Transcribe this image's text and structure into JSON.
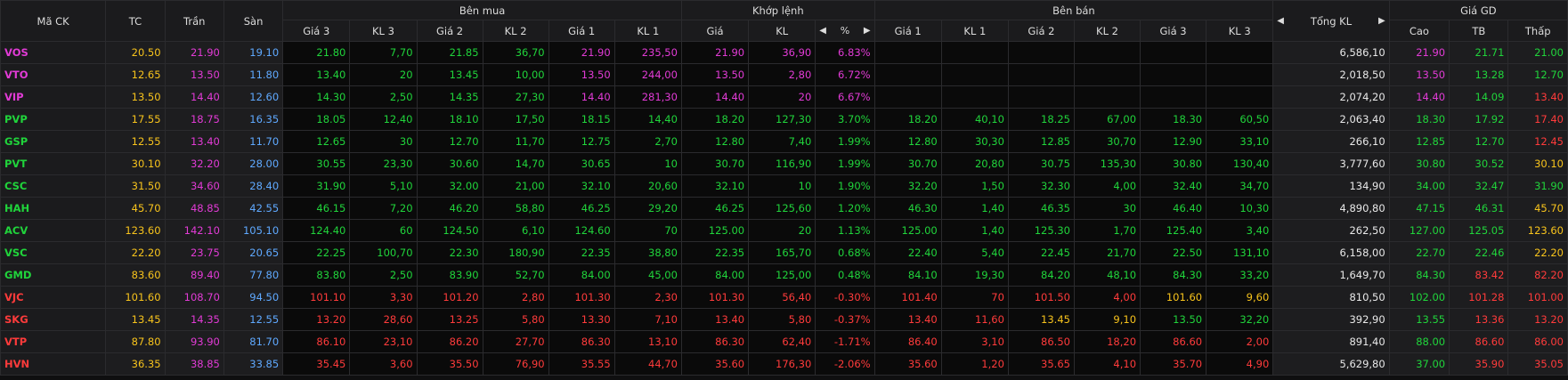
{
  "colors": {
    "ceiling": "#e23bd6",
    "up": "#20d43b",
    "down": "#ff3b3b",
    "ref": "#f7c31c",
    "floor": "#5fa9ff"
  },
  "headers": {
    "symbol": "Mã CK",
    "ref": "TC",
    "ceiling": "Trần",
    "floor": "Sàn",
    "buy_group": "Bên mua",
    "match_group": "Khớp lệnh",
    "sell_group": "Bên bán",
    "total": "Tổng KL",
    "price_group": "Giá GD",
    "buy_cols": [
      "Giá 3",
      "KL 3",
      "Giá 2",
      "KL 2",
      "Giá 1",
      "KL 1"
    ],
    "match_cols": [
      "Giá",
      "KL"
    ],
    "sell_cols": [
      "Giá 1",
      "KL 1",
      "Giá 2",
      "KL 2",
      "Giá 3",
      "KL 3"
    ],
    "price_cols": [
      "Cao",
      "TB",
      "Thấp"
    ],
    "pct_icon": "percent-toggle-icon"
  },
  "rows": [
    {
      "sym": "VOS",
      "tc": "20.50",
      "ceil": "21.90",
      "floor": "19.10",
      "bp3": "21.80",
      "bv3": "7,70",
      "bp2": "21.85",
      "bv2": "36,70",
      "bp1": "21.90",
      "bv1": "235,50",
      "mp": "21.90",
      "mv": "36,90",
      "pct": "6.83%",
      "sp1": "",
      "sv1": "",
      "sp2": "",
      "sv2": "",
      "sp3": "",
      "sv3": "",
      "tot": "6,586,10",
      "hi": "21.90",
      "avg": "21.71",
      "lo": "21.00",
      "c": {
        "sym": "purple",
        "bp3": "green",
        "bv3": "green",
        "bp2": "green",
        "bv2": "green",
        "bp1": "purple",
        "bv1": "purple",
        "mp": "purple",
        "mv": "purple",
        "pct": "purple",
        "sp1": "white",
        "sv1": "white",
        "sp2": "white",
        "sv2": "white",
        "sp3": "white",
        "sv3": "white",
        "hi": "purple",
        "avg": "green",
        "lo": "green"
      }
    },
    {
      "sym": "VTO",
      "tc": "12.65",
      "ceil": "13.50",
      "floor": "11.80",
      "bp3": "13.40",
      "bv3": "20",
      "bp2": "13.45",
      "bv2": "10,00",
      "bp1": "13.50",
      "bv1": "244,00",
      "mp": "13.50",
      "mv": "2,80",
      "pct": "6.72%",
      "sp1": "",
      "sv1": "",
      "sp2": "",
      "sv2": "",
      "sp3": "",
      "sv3": "",
      "tot": "2,018,50",
      "hi": "13.50",
      "avg": "13.28",
      "lo": "12.70",
      "c": {
        "sym": "purple",
        "bp3": "green",
        "bv3": "green",
        "bp2": "green",
        "bv2": "green",
        "bp1": "purple",
        "bv1": "purple",
        "mp": "purple",
        "mv": "purple",
        "pct": "purple",
        "sp1": "white",
        "sv1": "white",
        "sp2": "white",
        "sv2": "white",
        "sp3": "white",
        "sv3": "white",
        "hi": "purple",
        "avg": "green",
        "lo": "green"
      }
    },
    {
      "sym": "VIP",
      "tc": "13.50",
      "ceil": "14.40",
      "floor": "12.60",
      "bp3": "14.30",
      "bv3": "2,50",
      "bp2": "14.35",
      "bv2": "27,30",
      "bp1": "14.40",
      "bv1": "281,30",
      "mp": "14.40",
      "mv": "20",
      "pct": "6.67%",
      "sp1": "",
      "sv1": "",
      "sp2": "",
      "sv2": "",
      "sp3": "",
      "sv3": "",
      "tot": "2,074,20",
      "hi": "14.40",
      "avg": "14.09",
      "lo": "13.40",
      "c": {
        "sym": "purple",
        "bp3": "green",
        "bv3": "green",
        "bp2": "green",
        "bv2": "green",
        "bp1": "purple",
        "bv1": "purple",
        "mp": "purple",
        "mv": "purple",
        "pct": "purple",
        "sp1": "white",
        "sv1": "white",
        "sp2": "white",
        "sv2": "white",
        "sp3": "white",
        "sv3": "white",
        "hi": "purple",
        "avg": "green",
        "lo": "red"
      }
    },
    {
      "sym": "PVP",
      "tc": "17.55",
      "ceil": "18.75",
      "floor": "16.35",
      "bp3": "18.05",
      "bv3": "12,40",
      "bp2": "18.10",
      "bv2": "17,50",
      "bp1": "18.15",
      "bv1": "14,40",
      "mp": "18.20",
      "mv": "127,30",
      "pct": "3.70%",
      "sp1": "18.20",
      "sv1": "40,10",
      "sp2": "18.25",
      "sv2": "67,00",
      "sp3": "18.30",
      "sv3": "60,50",
      "tot": "2,063,40",
      "hi": "18.30",
      "avg": "17.92",
      "lo": "17.40",
      "c": {
        "sym": "green",
        "bp3": "green",
        "bv3": "green",
        "bp2": "green",
        "bv2": "green",
        "bp1": "green",
        "bv1": "green",
        "mp": "green",
        "mv": "green",
        "pct": "green",
        "sp1": "green",
        "sv1": "green",
        "sp2": "green",
        "sv2": "green",
        "sp3": "green",
        "sv3": "green",
        "hi": "green",
        "avg": "green",
        "lo": "red"
      }
    },
    {
      "sym": "GSP",
      "tc": "12.55",
      "ceil": "13.40",
      "floor": "11.70",
      "bp3": "12.65",
      "bv3": "30",
      "bp2": "12.70",
      "bv2": "11,70",
      "bp1": "12.75",
      "bv1": "2,70",
      "mp": "12.80",
      "mv": "7,40",
      "pct": "1.99%",
      "sp1": "12.80",
      "sv1": "30,30",
      "sp2": "12.85",
      "sv2": "30,70",
      "sp3": "12.90",
      "sv3": "33,10",
      "tot": "266,10",
      "hi": "12.85",
      "avg": "12.70",
      "lo": "12.45",
      "c": {
        "sym": "green",
        "bp3": "green",
        "bv3": "green",
        "bp2": "green",
        "bv2": "green",
        "bp1": "green",
        "bv1": "green",
        "mp": "green",
        "mv": "green",
        "pct": "green",
        "sp1": "green",
        "sv1": "green",
        "sp2": "green",
        "sv2": "green",
        "sp3": "green",
        "sv3": "green",
        "hi": "green",
        "avg": "green",
        "lo": "red"
      }
    },
    {
      "sym": "PVT",
      "tc": "30.10",
      "ceil": "32.20",
      "floor": "28.00",
      "bp3": "30.55",
      "bv3": "23,30",
      "bp2": "30.60",
      "bv2": "14,70",
      "bp1": "30.65",
      "bv1": "10",
      "mp": "30.70",
      "mv": "116,90",
      "pct": "1.99%",
      "sp1": "30.70",
      "sv1": "20,80",
      "sp2": "30.75",
      "sv2": "135,30",
      "sp3": "30.80",
      "sv3": "130,40",
      "tot": "3,777,60",
      "hi": "30.80",
      "avg": "30.52",
      "lo": "30.10",
      "c": {
        "sym": "green",
        "bp3": "green",
        "bv3": "green",
        "bp2": "green",
        "bv2": "green",
        "bp1": "green",
        "bv1": "green",
        "mp": "green",
        "mv": "green",
        "pct": "green",
        "sp1": "green",
        "sv1": "green",
        "sp2": "green",
        "sv2": "green",
        "sp3": "green",
        "sv3": "green",
        "hi": "green",
        "avg": "green",
        "lo": "yellow"
      }
    },
    {
      "sym": "CSC",
      "tc": "31.50",
      "ceil": "34.60",
      "floor": "28.40",
      "bp3": "31.90",
      "bv3": "5,10",
      "bp2": "32.00",
      "bv2": "21,00",
      "bp1": "32.10",
      "bv1": "20,60",
      "mp": "32.10",
      "mv": "10",
      "pct": "1.90%",
      "sp1": "32.20",
      "sv1": "1,50",
      "sp2": "32.30",
      "sv2": "4,00",
      "sp3": "32.40",
      "sv3": "34,70",
      "tot": "134,90",
      "hi": "34.00",
      "avg": "32.47",
      "lo": "31.90",
      "c": {
        "sym": "green",
        "bp3": "green",
        "bv3": "green",
        "bp2": "green",
        "bv2": "green",
        "bp1": "green",
        "bv1": "green",
        "mp": "green",
        "mv": "green",
        "pct": "green",
        "sp1": "green",
        "sv1": "green",
        "sp2": "green",
        "sv2": "green",
        "sp3": "green",
        "sv3": "green",
        "hi": "green",
        "avg": "green",
        "lo": "green"
      }
    },
    {
      "sym": "HAH",
      "tc": "45.70",
      "ceil": "48.85",
      "floor": "42.55",
      "bp3": "46.15",
      "bv3": "7,20",
      "bp2": "46.20",
      "bv2": "58,80",
      "bp1": "46.25",
      "bv1": "29,20",
      "mp": "46.25",
      "mv": "125,60",
      "pct": "1.20%",
      "sp1": "46.30",
      "sv1": "1,40",
      "sp2": "46.35",
      "sv2": "30",
      "sp3": "46.40",
      "sv3": "10,30",
      "tot": "4,890,80",
      "hi": "47.15",
      "avg": "46.31",
      "lo": "45.70",
      "c": {
        "sym": "green",
        "bp3": "green",
        "bv3": "green",
        "bp2": "green",
        "bv2": "green",
        "bp1": "green",
        "bv1": "green",
        "mp": "green",
        "mv": "green",
        "pct": "green",
        "sp1": "green",
        "sv1": "green",
        "sp2": "green",
        "sv2": "green",
        "sp3": "green",
        "sv3": "green",
        "hi": "green",
        "avg": "green",
        "lo": "yellow"
      }
    },
    {
      "sym": "ACV",
      "tc": "123.60",
      "ceil": "142.10",
      "floor": "105.10",
      "bp3": "124.40",
      "bv3": "60",
      "bp2": "124.50",
      "bv2": "6,10",
      "bp1": "124.60",
      "bv1": "70",
      "mp": "125.00",
      "mv": "20",
      "pct": "1.13%",
      "sp1": "125.00",
      "sv1": "1,40",
      "sp2": "125.30",
      "sv2": "1,70",
      "sp3": "125.40",
      "sv3": "3,40",
      "tot": "262,50",
      "hi": "127.00",
      "avg": "125.05",
      "lo": "123.60",
      "c": {
        "sym": "green",
        "bp3": "green",
        "bv3": "green",
        "bp2": "green",
        "bv2": "green",
        "bp1": "green",
        "bv1": "green",
        "mp": "green",
        "mv": "green",
        "pct": "green",
        "sp1": "green",
        "sv1": "green",
        "sp2": "green",
        "sv2": "green",
        "sp3": "green",
        "sv3": "green",
        "hi": "green",
        "avg": "green",
        "lo": "yellow"
      }
    },
    {
      "sym": "VSC",
      "tc": "22.20",
      "ceil": "23.75",
      "floor": "20.65",
      "bp3": "22.25",
      "bv3": "100,70",
      "bp2": "22.30",
      "bv2": "180,90",
      "bp1": "22.35",
      "bv1": "38,80",
      "mp": "22.35",
      "mv": "165,70",
      "pct": "0.68%",
      "sp1": "22.40",
      "sv1": "5,40",
      "sp2": "22.45",
      "sv2": "21,70",
      "sp3": "22.50",
      "sv3": "131,10",
      "tot": "6,158,00",
      "hi": "22.70",
      "avg": "22.46",
      "lo": "22.20",
      "c": {
        "sym": "green",
        "bp3": "green",
        "bv3": "green",
        "bp2": "green",
        "bv2": "green",
        "bp1": "green",
        "bv1": "green",
        "mp": "green",
        "mv": "green",
        "pct": "green",
        "sp1": "green",
        "sv1": "green",
        "sp2": "green",
        "sv2": "green",
        "sp3": "green",
        "sv3": "green",
        "hi": "green",
        "avg": "green",
        "lo": "yellow"
      }
    },
    {
      "sym": "GMD",
      "tc": "83.60",
      "ceil": "89.40",
      "floor": "77.80",
      "bp3": "83.80",
      "bv3": "2,50",
      "bp2": "83.90",
      "bv2": "52,70",
      "bp1": "84.00",
      "bv1": "45,00",
      "mp": "84.00",
      "mv": "125,00",
      "pct": "0.48%",
      "sp1": "84.10",
      "sv1": "19,30",
      "sp2": "84.20",
      "sv2": "48,10",
      "sp3": "84.30",
      "sv3": "33,20",
      "tot": "1,649,70",
      "hi": "84.30",
      "avg": "83.42",
      "lo": "82.20",
      "c": {
        "sym": "green",
        "bp3": "green",
        "bv3": "green",
        "bp2": "green",
        "bv2": "green",
        "bp1": "green",
        "bv1": "green",
        "mp": "green",
        "mv": "green",
        "pct": "green",
        "sp1": "green",
        "sv1": "green",
        "sp2": "green",
        "sv2": "green",
        "sp3": "green",
        "sv3": "green",
        "hi": "green",
        "avg": "red",
        "lo": "red"
      }
    },
    {
      "sym": "VJC",
      "tc": "101.60",
      "ceil": "108.70",
      "floor": "94.50",
      "bp3": "101.10",
      "bv3": "3,30",
      "bp2": "101.20",
      "bv2": "2,80",
      "bp1": "101.30",
      "bv1": "2,30",
      "mp": "101.30",
      "mv": "56,40",
      "pct": "-0.30%",
      "sp1": "101.40",
      "sv1": "70",
      "sp2": "101.50",
      "sv2": "4,00",
      "sp3": "101.60",
      "sv3": "9,60",
      "tot": "810,50",
      "hi": "102.00",
      "avg": "101.28",
      "lo": "101.00",
      "c": {
        "sym": "red",
        "bp3": "red",
        "bv3": "red",
        "bp2": "red",
        "bv2": "red",
        "bp1": "red",
        "bv1": "red",
        "mp": "red",
        "mv": "red",
        "pct": "red",
        "sp1": "red",
        "sv1": "red",
        "sp2": "red",
        "sv2": "red",
        "sp3": "yellow",
        "sv3": "yellow",
        "hi": "green",
        "avg": "red",
        "lo": "red"
      }
    },
    {
      "sym": "SKG",
      "tc": "13.45",
      "ceil": "14.35",
      "floor": "12.55",
      "bp3": "13.20",
      "bv3": "28,60",
      "bp2": "13.25",
      "bv2": "5,80",
      "bp1": "13.30",
      "bv1": "7,10",
      "mp": "13.40",
      "mv": "5,80",
      "pct": "-0.37%",
      "sp1": "13.40",
      "sv1": "11,60",
      "sp2": "13.45",
      "sv2": "9,10",
      "sp3": "13.50",
      "sv3": "32,20",
      "tot": "392,90",
      "hi": "13.55",
      "avg": "13.36",
      "lo": "13.20",
      "c": {
        "sym": "red",
        "bp3": "red",
        "bv3": "red",
        "bp2": "red",
        "bv2": "red",
        "bp1": "red",
        "bv1": "red",
        "mp": "red",
        "mv": "red",
        "pct": "red",
        "sp1": "red",
        "sv1": "red",
        "sp2": "yellow",
        "sv2": "yellow",
        "sp3": "green",
        "sv3": "green",
        "hi": "green",
        "avg": "red",
        "lo": "red"
      }
    },
    {
      "sym": "VTP",
      "tc": "87.80",
      "ceil": "93.90",
      "floor": "81.70",
      "bp3": "86.10",
      "bv3": "23,10",
      "bp2": "86.20",
      "bv2": "27,70",
      "bp1": "86.30",
      "bv1": "13,10",
      "mp": "86.30",
      "mv": "62,40",
      "pct": "-1.71%",
      "sp1": "86.40",
      "sv1": "3,10",
      "sp2": "86.50",
      "sv2": "18,20",
      "sp3": "86.60",
      "sv3": "2,00",
      "tot": "891,40",
      "hi": "88.00",
      "avg": "86.60",
      "lo": "86.00",
      "c": {
        "sym": "red",
        "bp3": "red",
        "bv3": "red",
        "bp2": "red",
        "bv2": "red",
        "bp1": "red",
        "bv1": "red",
        "mp": "red",
        "mv": "red",
        "pct": "red",
        "sp1": "red",
        "sv1": "red",
        "sp2": "red",
        "sv2": "red",
        "sp3": "red",
        "sv3": "red",
        "hi": "green",
        "avg": "red",
        "lo": "red"
      }
    },
    {
      "sym": "HVN",
      "tc": "36.35",
      "ceil": "38.85",
      "floor": "33.85",
      "bp3": "35.45",
      "bv3": "3,60",
      "bp2": "35.50",
      "bv2": "76,90",
      "bp1": "35.55",
      "bv1": "44,70",
      "mp": "35.60",
      "mv": "176,30",
      "pct": "-2.06%",
      "sp1": "35.60",
      "sv1": "1,20",
      "sp2": "35.65",
      "sv2": "4,10",
      "sp3": "35.70",
      "sv3": "4,90",
      "tot": "5,629,80",
      "hi": "37.00",
      "avg": "35.90",
      "lo": "35.05",
      "c": {
        "sym": "red",
        "bp3": "red",
        "bv3": "red",
        "bp2": "red",
        "bv2": "red",
        "bp1": "red",
        "bv1": "red",
        "mp": "red",
        "mv": "red",
        "pct": "red",
        "sp1": "red",
        "sv1": "red",
        "sp2": "red",
        "sv2": "red",
        "sp3": "red",
        "sv3": "red",
        "hi": "green",
        "avg": "red",
        "lo": "red"
      }
    }
  ]
}
